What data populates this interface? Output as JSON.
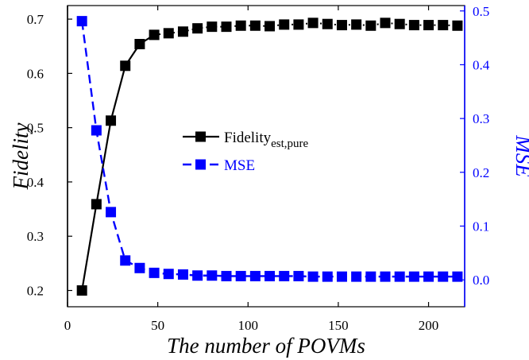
{
  "chart_data": {
    "type": "line",
    "xlabel": "The number of POVMs",
    "ylabel_left": "Fidelity",
    "ylabel_right": "MSE",
    "xlim": [
      0,
      220
    ],
    "ylim_left": [
      0.17,
      0.725
    ],
    "ylim_right": [
      -0.05,
      0.51
    ],
    "x_ticks": [
      0,
      50,
      100,
      150,
      200
    ],
    "y_left_ticks": [
      0.2,
      0.3,
      0.4,
      0.5,
      0.6,
      0.7
    ],
    "y_right_ticks": [
      0.0,
      0.1,
      0.2,
      0.3,
      0.4,
      0.5
    ],
    "grid": false,
    "legend_position": "center",
    "colors": {
      "fidelity": "#000000",
      "mse": "#0000ff"
    },
    "x": [
      8,
      16,
      24,
      32,
      40,
      48,
      56,
      64,
      72,
      80,
      88,
      96,
      104,
      112,
      120,
      128,
      136,
      144,
      152,
      160,
      168,
      176,
      184,
      192,
      200,
      208,
      216
    ],
    "series": [
      {
        "name": "Fidelity",
        "subscript": "est,pure",
        "axis": "left",
        "color": "#000000",
        "values": [
          0.2,
          0.359,
          0.513,
          0.614,
          0.654,
          0.671,
          0.674,
          0.677,
          0.683,
          0.686,
          0.686,
          0.688,
          0.688,
          0.687,
          0.69,
          0.69,
          0.693,
          0.691,
          0.689,
          0.69,
          0.688,
          0.693,
          0.691,
          0.689,
          0.689,
          0.689,
          0.688
        ]
      },
      {
        "name": "MSE",
        "axis": "right",
        "color": "#0000ff",
        "values": [
          0.481,
          0.278,
          0.126,
          0.036,
          0.022,
          0.013,
          0.011,
          0.01,
          0.008,
          0.008,
          0.007,
          0.007,
          0.007,
          0.007,
          0.007,
          0.007,
          0.006,
          0.006,
          0.006,
          0.006,
          0.006,
          0.006,
          0.006,
          0.006,
          0.006,
          0.006,
          0.006
        ]
      }
    ]
  }
}
